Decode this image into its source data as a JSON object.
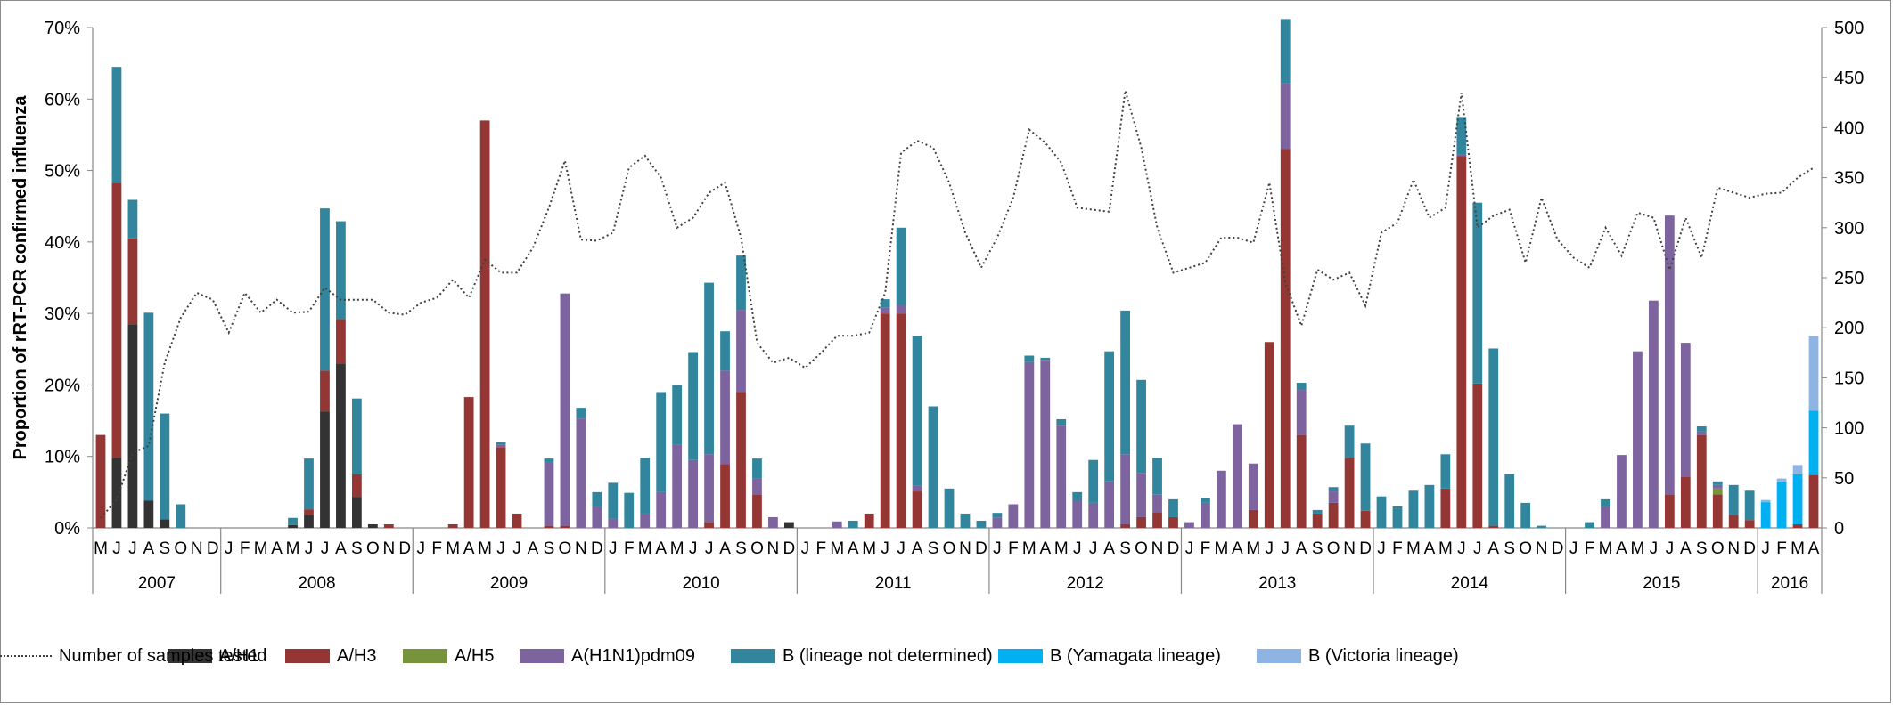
{
  "chart_data": {
    "type": "bar",
    "stacked": true,
    "title": "",
    "ylabel": "Proportion of rRT-PCR confirmed influenza",
    "y2label": "",
    "ylim": [
      0,
      70
    ],
    "y2lim": [
      0,
      500
    ],
    "yticks": [
      "0%",
      "10%",
      "20%",
      "30%",
      "40%",
      "50%",
      "60%",
      "70%"
    ],
    "y2ticks": [
      "0",
      "50",
      "100",
      "150",
      "200",
      "250",
      "300",
      "350",
      "400",
      "450",
      "500"
    ],
    "grid": false,
    "legend_position": "bottom",
    "months": [
      "M",
      "J",
      "J",
      "A",
      "S",
      "O",
      "N",
      "D",
      "J",
      "F",
      "M",
      "A",
      "M",
      "J",
      "J",
      "A",
      "S",
      "O",
      "N",
      "D",
      "J",
      "F",
      "M",
      "A",
      "M",
      "J",
      "J",
      "A",
      "S",
      "O",
      "N",
      "D",
      "J",
      "F",
      "M",
      "A",
      "M",
      "J",
      "J",
      "A",
      "S",
      "O",
      "N",
      "D",
      "J",
      "F",
      "M",
      "A",
      "M",
      "J",
      "J",
      "A",
      "S",
      "O",
      "N",
      "D",
      "J",
      "F",
      "M",
      "A",
      "M",
      "J",
      "J",
      "A",
      "S",
      "O",
      "N",
      "D",
      "J",
      "F",
      "M",
      "A",
      "M",
      "J",
      "J",
      "A",
      "S",
      "O",
      "N",
      "D",
      "J",
      "F",
      "M",
      "A",
      "M",
      "J",
      "J",
      "A",
      "S",
      "O",
      "N",
      "D",
      "J",
      "F",
      "M",
      "A",
      "M",
      "J",
      "J",
      "A",
      "S",
      "O",
      "N",
      "D",
      "J",
      "F",
      "M",
      "A"
    ],
    "years": [
      {
        "label": "2007",
        "start": 0,
        "count": 8
      },
      {
        "label": "2008",
        "start": 8,
        "count": 12
      },
      {
        "label": "2009",
        "start": 20,
        "count": 12
      },
      {
        "label": "2010",
        "start": 32,
        "count": 12
      },
      {
        "label": "2011",
        "start": 44,
        "count": 12
      },
      {
        "label": "2012",
        "start": 56,
        "count": 12
      },
      {
        "label": "2013",
        "start": 68,
        "count": 12
      },
      {
        "label": "2014",
        "start": 80,
        "count": 12
      },
      {
        "label": "2015",
        "start": 92,
        "count": 12
      },
      {
        "label": "2016",
        "start": 104,
        "count": 4
      }
    ],
    "series": [
      {
        "name": "A/H1",
        "color": "#333333",
        "values": [
          0,
          9.8,
          28.5,
          3.8,
          1.2,
          0,
          0,
          0,
          0,
          0,
          0,
          0,
          0.4,
          1.8,
          16.3,
          23,
          4.3,
          0.5,
          0,
          0,
          0,
          0,
          0,
          0,
          0,
          0,
          0,
          0,
          0,
          0,
          0,
          0,
          0,
          0,
          0,
          0,
          0,
          0,
          0,
          0,
          0,
          0,
          0,
          0.8,
          0,
          0,
          0,
          0,
          0,
          0,
          0,
          0,
          0,
          0,
          0,
          0,
          0,
          0,
          0,
          0,
          0,
          0,
          0,
          0,
          0,
          0,
          0,
          0,
          0,
          0,
          0,
          0,
          0,
          0,
          0,
          0,
          0,
          0,
          0,
          0,
          0,
          0,
          0,
          0,
          0,
          0,
          0,
          0,
          0,
          0,
          0,
          0,
          0,
          0,
          0,
          0,
          0,
          0,
          0,
          0,
          0,
          0,
          0,
          0,
          0,
          0,
          0,
          0
        ]
      },
      {
        "name": "A/H3",
        "color": "#943634",
        "values": [
          13,
          38.5,
          12,
          0,
          0,
          0,
          0,
          0,
          0,
          0,
          0,
          0,
          0,
          0.8,
          5.7,
          6.2,
          3.2,
          0,
          0.5,
          0,
          0,
          0,
          0.5,
          18.3,
          57,
          11.3,
          2,
          0,
          0.3,
          0.3,
          0,
          0,
          0,
          0,
          0,
          0,
          0,
          0,
          0.8,
          8.9,
          19,
          4.7,
          0,
          0,
          0,
          0,
          0,
          0,
          2,
          30,
          30,
          5.1,
          0,
          0,
          0,
          0,
          0,
          0,
          0,
          0,
          0,
          0,
          0,
          0,
          0.5,
          1.5,
          2.2,
          1.5,
          0,
          0,
          0,
          0,
          2.5,
          26,
          53,
          13,
          2,
          3.5,
          9.8,
          2.4,
          0,
          0,
          0,
          0,
          5.5,
          52,
          20.2,
          0.3,
          0,
          0,
          0,
          0,
          0,
          0,
          0,
          0,
          0,
          0,
          4.7,
          7.1,
          13,
          4.7,
          1.8,
          1.1,
          0,
          0,
          0.5,
          7.4
        ]
      },
      {
        "name": "A/H5",
        "color": "#77933c",
        "values": [
          0,
          0,
          0,
          0,
          0,
          0,
          0,
          0,
          0,
          0,
          0,
          0,
          0,
          0,
          0,
          0,
          0,
          0,
          0,
          0,
          0,
          0,
          0,
          0,
          0,
          0,
          0,
          0,
          0,
          0,
          0,
          0,
          0,
          0,
          0,
          0,
          0,
          0,
          0,
          0,
          0,
          0,
          0,
          0,
          0,
          0,
          0,
          0,
          0,
          0,
          0,
          0,
          0,
          0,
          0,
          0,
          0,
          0,
          0,
          0,
          0,
          0,
          0,
          0,
          0,
          0,
          0,
          0,
          0,
          0,
          0,
          0,
          0,
          0,
          0,
          0,
          0,
          0,
          0,
          0,
          0,
          0,
          0,
          0,
          0,
          0,
          0,
          0,
          0,
          0,
          0,
          0,
          0,
          0,
          0,
          0,
          0,
          0,
          0,
          0,
          0,
          0.8,
          0,
          0,
          0,
          0,
          0,
          0
        ]
      },
      {
        "name": "A(H1N1)pdm09",
        "color": "#7e649e",
        "values": [
          0,
          0,
          0,
          0,
          0,
          0,
          0,
          0,
          0,
          0,
          0,
          0,
          0,
          0,
          0,
          0,
          0,
          0,
          0,
          0,
          0,
          0,
          0,
          0,
          0,
          0.3,
          0,
          0,
          8.8,
          32.5,
          15.3,
          3,
          1.3,
          0,
          2,
          5,
          11.7,
          9.5,
          9.5,
          13.1,
          11.5,
          2.2,
          1.5,
          0,
          0,
          0,
          0.9,
          0,
          0,
          0.8,
          1.2,
          0.8,
          0,
          0,
          0,
          0,
          1.4,
          3.3,
          23.2,
          23.5,
          14.3,
          3.8,
          3.5,
          6.5,
          9.8,
          6.2,
          2.5,
          0,
          0.8,
          3.5,
          8,
          14.5,
          6.5,
          0,
          9.2,
          6.3,
          0,
          1.6,
          0,
          0,
          0,
          0,
          0,
          0,
          0,
          0.2,
          0,
          0,
          0,
          0,
          0,
          0,
          0,
          0,
          3,
          10.2,
          24.7,
          31.8,
          39,
          18.8,
          0.5,
          0.5,
          0,
          0,
          0,
          0,
          0,
          0
        ]
      },
      {
        "name": "B (lineage not determined)",
        "color": "#31859c",
        "values": [
          0,
          16.2,
          5.4,
          26.3,
          14.8,
          3.3,
          0,
          0,
          0,
          0,
          0,
          0,
          1,
          7.1,
          22.7,
          13.7,
          10.6,
          0,
          0,
          0,
          0,
          0,
          0,
          0,
          0,
          0.4,
          0,
          0,
          0.6,
          0,
          1.5,
          2,
          5,
          4.9,
          7.8,
          14,
          8.3,
          15.1,
          24,
          5.5,
          7.6,
          2.8,
          0,
          0,
          0,
          0,
          0,
          1,
          0,
          1.2,
          10.8,
          21,
          17,
          5.5,
          2,
          1,
          0.7,
          0,
          0.9,
          0.3,
          0.9,
          1.2,
          6,
          18.2,
          20.1,
          13,
          5.1,
          2.5,
          0,
          0.7,
          0,
          0,
          0,
          0,
          9,
          1,
          0.5,
          0.6,
          4.5,
          9.4,
          4.4,
          3,
          5.2,
          6,
          4.8,
          5.3,
          25.3,
          24.8,
          7.5,
          3.5,
          0.3,
          0,
          0,
          0.8,
          1,
          0,
          0,
          0,
          0,
          0,
          0.7,
          0.5,
          4.2,
          4.1,
          0,
          0,
          0,
          0
        ]
      },
      {
        "name": "B (Yamagata lineage)",
        "color": "#00b0f0",
        "values": [
          0,
          0,
          0,
          0,
          0,
          0,
          0,
          0,
          0,
          0,
          0,
          0,
          0,
          0,
          0,
          0,
          0,
          0,
          0,
          0,
          0,
          0,
          0,
          0,
          0,
          0,
          0,
          0,
          0,
          0,
          0,
          0,
          0,
          0,
          0,
          0,
          0,
          0,
          0,
          0,
          0,
          0,
          0,
          0,
          0,
          0,
          0,
          0,
          0,
          0,
          0,
          0,
          0,
          0,
          0,
          0,
          0,
          0,
          0,
          0,
          0,
          0,
          0,
          0,
          0,
          0,
          0,
          0,
          0,
          0,
          0,
          0,
          0,
          0,
          0,
          0,
          0,
          0,
          0,
          0,
          0,
          0,
          0,
          0,
          0,
          0,
          0,
          0,
          0,
          0,
          0,
          0,
          0,
          0,
          0,
          0,
          0,
          0,
          0,
          0,
          0,
          0,
          0,
          0,
          3.6,
          6.5,
          7,
          9
        ]
      },
      {
        "name": "B (Victoria lineage)",
        "color": "#8db4e2",
        "values": [
          0,
          0,
          0,
          0,
          0,
          0,
          0,
          0,
          0,
          0,
          0,
          0,
          0,
          0,
          0,
          0,
          0,
          0,
          0,
          0,
          0,
          0,
          0,
          0,
          0,
          0,
          0,
          0,
          0,
          0,
          0,
          0,
          0,
          0,
          0,
          0,
          0,
          0,
          0,
          0,
          0,
          0,
          0,
          0,
          0,
          0,
          0,
          0,
          0,
          0,
          0,
          0,
          0,
          0,
          0,
          0,
          0,
          0,
          0,
          0,
          0,
          0,
          0,
          0,
          0,
          0,
          0,
          0,
          0,
          0,
          0,
          0,
          0,
          0,
          0,
          0,
          0,
          0,
          0,
          0,
          0,
          0,
          0,
          0,
          0,
          0,
          0,
          0,
          0,
          0,
          0,
          0,
          0,
          0,
          0,
          0,
          0,
          0,
          0,
          0,
          0,
          0,
          0,
          0,
          0.3,
          0.4,
          1.3,
          10.4
        ]
      }
    ],
    "line_series": {
      "name": "Number of samples tested",
      "color": "#404040",
      "axis": "right",
      "style": "dotted",
      "values": [
        10,
        28,
        75,
        82,
        165,
        210,
        235,
        228,
        195,
        235,
        215,
        228,
        215,
        216,
        240,
        228,
        228,
        228,
        215,
        213,
        225,
        230,
        248,
        230,
        268,
        255,
        255,
        280,
        320,
        367,
        288,
        287,
        295,
        360,
        372,
        350,
        300,
        310,
        335,
        345,
        290,
        185,
        165,
        170,
        160,
        175,
        192,
        192,
        195,
        235,
        375,
        387,
        380,
        345,
        295,
        260,
        290,
        330,
        398,
        385,
        365,
        320,
        318,
        316,
        437,
        380,
        300,
        255,
        260,
        265,
        290,
        290,
        285,
        345,
        245,
        202,
        258,
        248,
        255,
        222,
        295,
        305,
        348,
        310,
        320,
        435,
        300,
        312,
        318,
        265,
        330,
        288,
        270,
        260,
        300,
        272,
        315,
        310,
        258,
        310,
        270,
        340,
        335,
        330,
        334,
        335,
        350,
        360
      ]
    }
  }
}
